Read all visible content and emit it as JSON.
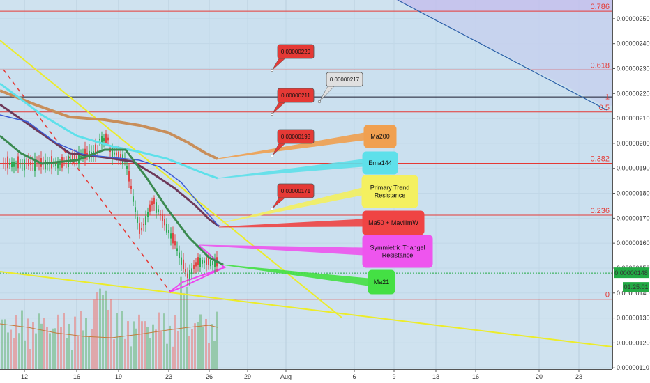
{
  "chart_data": {
    "type": "candlestick",
    "price_axis": {
      "min": 1.095e-06,
      "max": 2.575e-06,
      "ticks": [
        "0.00000250",
        "0.00000240",
        "0.00000230",
        "0.00000220",
        "0.00000210",
        "0.00000200",
        "0.00000190",
        "0.00000180",
        "0.00000170",
        "0.00000160",
        "0.00000150",
        "0.00000140",
        "0.00000130",
        "0.00000120",
        "0.00000110"
      ]
    },
    "time_axis": {
      "ticks": [
        "12",
        "16",
        "19",
        "23",
        "26",
        "29",
        "Aug",
        "6",
        "9",
        "13",
        "16",
        "20",
        "23"
      ]
    },
    "fib_levels": [
      {
        "label": "0.786",
        "price": 2.53e-06
      },
      {
        "label": "0.618",
        "price": 2.295e-06
      },
      {
        "label": "0.5",
        "price": 2.126e-06
      },
      {
        "label": "0.382",
        "price": 1.92e-06
      },
      {
        "label": "0.236",
        "price": 1.712e-06
      },
      {
        "label": "0",
        "price": 1.375e-06
      }
    ],
    "key_level": {
      "label": "1",
      "price": 2.185e-06
    },
    "current_price": {
      "label": "0.00000148",
      "countdown": "01:25:01",
      "price": 1.48e-06
    },
    "price_tags": [
      {
        "text": "0.00000229",
        "color": "#e53935",
        "price": 2.29e-06
      },
      {
        "text": "0.00000211",
        "color": "#e53935",
        "price": 2.11e-06
      },
      {
        "text": "0.00000217",
        "color": "#e0e0e0",
        "price": 2.17e-06
      },
      {
        "text": "0.00000193",
        "color": "#e53935",
        "price": 1.93e-06
      },
      {
        "text": "0.00000171",
        "color": "#e53935",
        "price": 1.71e-06
      }
    ],
    "indicator_callouts": [
      {
        "lines": [
          "Ma200"
        ],
        "color": "#f0a050"
      },
      {
        "lines": [
          "Ema144"
        ],
        "color": "#5ee0ea"
      },
      {
        "lines": [
          "Primary Trend",
          "Resistance"
        ],
        "color": "#f4f060"
      },
      {
        "lines": [
          "Ma50 + MavilimW"
        ],
        "color": "#ef4444"
      },
      {
        "lines": [
          "Symmietric Triangel",
          "Resistance"
        ],
        "color": "#ee55ee"
      },
      {
        "lines": [
          "Ma21"
        ],
        "color": "#44e044"
      }
    ]
  }
}
